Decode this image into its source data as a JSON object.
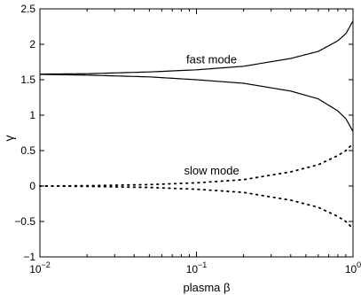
{
  "chart_data": {
    "type": "line",
    "xlabel": "plasma β",
    "ylabel": "γ",
    "xscale": "log",
    "xlim": [
      0.01,
      1
    ],
    "ylim": [
      -1,
      2.5
    ],
    "grid": false,
    "x_ticks": [
      0.01,
      0.1,
      1
    ],
    "x_tick_labels": [
      {
        "base": "10",
        "exp": "−2"
      },
      {
        "base": "10",
        "exp": "−1"
      },
      {
        "base": "10",
        "exp": "0"
      }
    ],
    "y_ticks": [
      -1,
      -0.5,
      0,
      0.5,
      1,
      1.5,
      2,
      2.5
    ],
    "y_tick_labels": [
      "−1",
      "−0.5",
      "0",
      "0.5",
      "1",
      "1.5",
      "2",
      "2.5"
    ],
    "annotations": [
      {
        "text": "fast mode",
        "x": 0.125,
        "y": 1.73
      },
      {
        "text": "slow mode",
        "x": 0.125,
        "y": 0.16
      }
    ],
    "series": [
      {
        "style": "solid",
        "x": [
          0.01,
          0.02,
          0.05,
          0.1,
          0.2,
          0.4,
          0.6,
          0.8,
          0.9,
          1.0
        ],
        "y": [
          1.58,
          1.585,
          1.61,
          1.64,
          1.69,
          1.8,
          1.9,
          2.05,
          2.15,
          2.33
        ]
      },
      {
        "style": "solid",
        "x": [
          0.01,
          0.02,
          0.05,
          0.1,
          0.2,
          0.4,
          0.6,
          0.8,
          0.9,
          1.0
        ],
        "y": [
          1.575,
          1.565,
          1.54,
          1.5,
          1.45,
          1.34,
          1.23,
          1.06,
          0.95,
          0.77
        ]
      },
      {
        "style": "dotted",
        "x": [
          0.01,
          0.02,
          0.05,
          0.1,
          0.2,
          0.4,
          0.6,
          0.8,
          0.9,
          1.0
        ],
        "y": [
          0.0,
          0.005,
          0.02,
          0.045,
          0.09,
          0.2,
          0.3,
          0.43,
          0.5,
          0.6
        ]
      },
      {
        "style": "dotted",
        "x": [
          0.01,
          0.02,
          0.05,
          0.1,
          0.2,
          0.4,
          0.6,
          0.8,
          0.9,
          1.0
        ],
        "y": [
          0.0,
          -0.005,
          -0.02,
          -0.045,
          -0.09,
          -0.2,
          -0.3,
          -0.43,
          -0.5,
          -0.6
        ]
      }
    ]
  }
}
